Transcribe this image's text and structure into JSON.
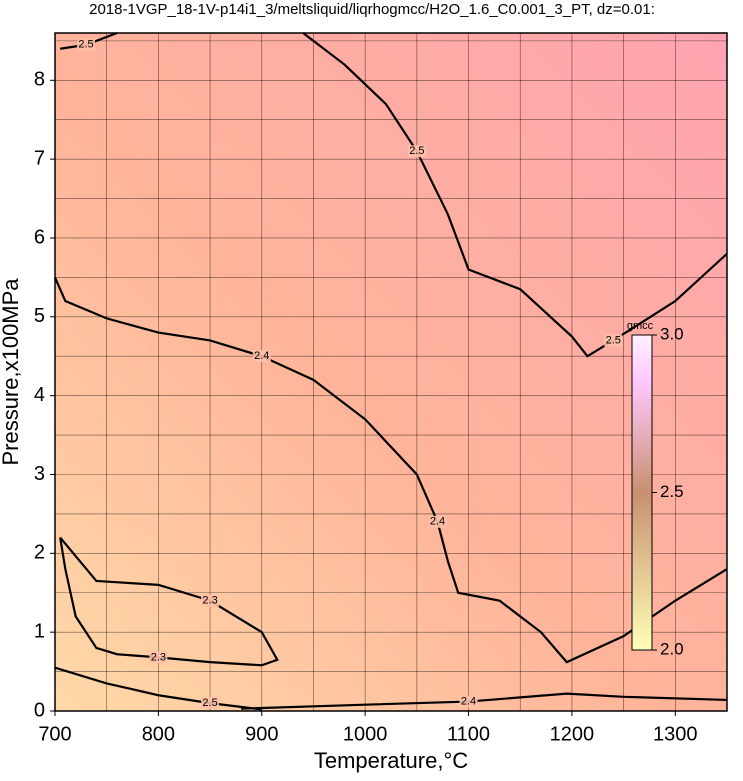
{
  "chart_data": {
    "type": "contour",
    "title": "2018-1VGP_18-1V-p14i1_3/meltsliquid/liqrhogmcc/H2O_1.6_C0.001_3_PT, dz=0.01:",
    "x_label": "Temperature,°C",
    "y_label": "Pressure,x100MPa",
    "xlim": [
      700,
      1350
    ],
    "ylim": [
      0,
      8.6
    ],
    "xticks": [
      700,
      800,
      900,
      1000,
      1100,
      1200,
      1300
    ],
    "yticks": [
      0,
      1,
      2,
      3,
      4,
      5,
      6,
      7,
      8
    ],
    "xgrid": [
      700,
      750,
      800,
      850,
      900,
      950,
      1000,
      1050,
      1100,
      1150,
      1200,
      1250,
      1300,
      1350
    ],
    "ygrid": [
      0,
      0.5,
      1,
      1.5,
      2,
      2.5,
      3,
      3.5,
      4,
      4.5,
      5,
      5.5,
      6,
      6.5,
      7,
      7.5,
      8,
      8.5
    ],
    "grid": true,
    "contours": [
      {
        "level": 2.5,
        "x": [
          940,
          980,
          1020,
          1050,
          1080,
          1100,
          1150,
          1200,
          1215,
          1240,
          1300,
          1350
        ],
        "y": [
          8.6,
          8.2,
          7.7,
          7.1,
          6.3,
          5.6,
          5.35,
          4.75,
          4.5,
          4.7,
          5.2,
          5.8
        ]
      },
      {
        "level": 2.4,
        "x": [
          700,
          710,
          750,
          800,
          850,
          900,
          950,
          1000,
          1050,
          1070,
          1080,
          1090,
          1130,
          1170,
          1195,
          1250,
          1300,
          1350
        ],
        "y": [
          5.5,
          5.2,
          4.98,
          4.8,
          4.7,
          4.5,
          4.2,
          3.7,
          3.0,
          2.4,
          1.9,
          1.5,
          1.4,
          1.0,
          0.62,
          0.95,
          1.4,
          1.8
        ]
      },
      {
        "level": 2.3,
        "x": [
          705,
          740,
          800,
          850,
          900,
          915,
          900,
          850,
          800,
          760,
          740,
          720,
          710,
          705
        ],
        "y": [
          2.2,
          1.65,
          1.6,
          1.4,
          1.0,
          0.65,
          0.58,
          0.62,
          0.68,
          0.72,
          0.8,
          1.2,
          1.8,
          2.2
        ]
      },
      {
        "level": 2.4,
        "x": [
          880,
          1000,
          1100,
          1195,
          1250,
          1350
        ],
        "y": [
          0.03,
          0.08,
          0.12,
          0.22,
          0.18,
          0.14
        ]
      },
      {
        "level": 2.5,
        "x": [
          700,
          750,
          800,
          850,
          900
        ],
        "y": [
          0.55,
          0.35,
          0.2,
          0.1,
          0.02
        ]
      },
      {
        "level": 2.5,
        "x": [
          705,
          730,
          760
        ],
        "y": [
          8.4,
          8.45,
          8.6
        ]
      }
    ],
    "colorbar": {
      "title": "gmcc",
      "lim": [
        2,
        3
      ],
      "ticks": [
        {
          "value": 2,
          "label": "2.0"
        },
        2.5,
        {
          "value": 3,
          "label": "3.0"
        }
      ]
    }
  }
}
